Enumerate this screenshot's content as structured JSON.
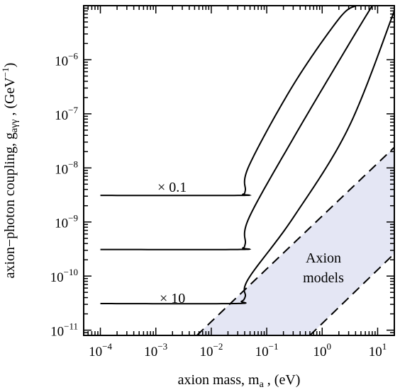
{
  "chart_data": {
    "type": "line",
    "xlabel": "axion mass, m",
    "xlabel_sub": "a",
    "xlabel_unit": " ,  (eV)",
    "ylabel": "axion−photon coupling, g",
    "ylabel_sub": "aγγ",
    "ylabel_unit": " ,  (GeV",
    "ylabel_unit_sup": "−1",
    "ylabel_unit_close": ")",
    "x_scale": "log",
    "y_scale": "log",
    "xlim": [
      5e-05,
      20
    ],
    "ylim": [
      8e-12,
      1e-05
    ],
    "x_ticks": [
      {
        "value": 0.0001,
        "base": "10",
        "exp": "−4"
      },
      {
        "value": 0.001,
        "base": "10",
        "exp": "−3"
      },
      {
        "value": 0.01,
        "base": "10",
        "exp": "−2"
      },
      {
        "value": 0.1,
        "base": "10",
        "exp": "−1"
      },
      {
        "value": 1,
        "base": "10",
        "exp": "0"
      },
      {
        "value": 10,
        "base": "10",
        "exp": "1"
      }
    ],
    "y_ticks": [
      {
        "value": 1e-11,
        "base": "10",
        "exp": "−11"
      },
      {
        "value": 1e-10,
        "base": "10",
        "exp": "−10"
      },
      {
        "value": 1e-09,
        "base": "10",
        "exp": "−9"
      },
      {
        "value": 1e-08,
        "base": "10",
        "exp": "−8"
      },
      {
        "value": 1e-07,
        "base": "10",
        "exp": "−7"
      },
      {
        "value": 1e-06,
        "base": "10",
        "exp": "−6"
      }
    ],
    "series": [
      {
        "label": "× 0.1",
        "style": "solid",
        "x": [
          0.0001,
          0.03,
          0.037,
          0.041,
          0.048,
          0.3,
          2.0,
          4.0
        ],
        "y": [
          3.1e-09,
          3.1e-09,
          3.25e-09,
          3.8e-09,
          1.1e-08,
          3.4e-07,
          5.7e-06,
          1e-05
        ]
      },
      {
        "label": "",
        "style": "solid",
        "x": [
          0.0001,
          0.03,
          0.037,
          0.041,
          0.048,
          0.3,
          3.0,
          8.0
        ],
        "y": [
          3.1e-10,
          3.1e-10,
          3.3e-10,
          4e-10,
          1.2e-09,
          3.5e-08,
          1.9e-06,
          1e-05
        ]
      },
      {
        "label": "× 10",
        "style": "solid",
        "x": [
          0.0001,
          0.025,
          0.035,
          0.041,
          0.047,
          0.3,
          3.0,
          20.0
        ],
        "y": [
          3.1e-11,
          3.1e-11,
          3.4e-11,
          4.2e-11,
          9e-11,
          1.2e-09,
          5.6e-08,
          8e-06
        ]
      }
    ],
    "band": {
      "label_line1": "Axion",
      "label_line2": "models",
      "fill": "#e4e6f4",
      "upper": {
        "x": [
          0.0055,
          20
        ],
        "y": [
          8e-12,
          2.4e-08
        ]
      },
      "lower": {
        "x": [
          0.6,
          20
        ],
        "y": [
          8e-12,
          2.6e-10
        ]
      }
    }
  }
}
